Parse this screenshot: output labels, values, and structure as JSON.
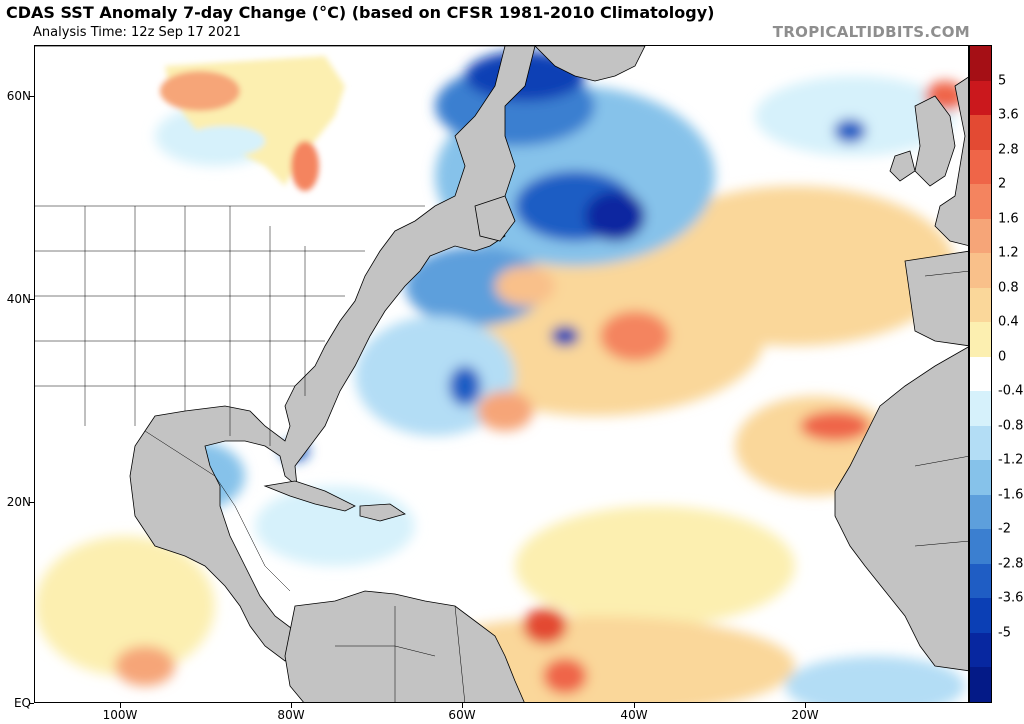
{
  "header": {
    "title": "CDAS SST Anomaly 7-day Change (°C) (based on CFSR 1981-2010 Climatology)",
    "analysis_time": "Analysis Time: 12z Sep 17 2021",
    "credit": "TROPICALTIDBITS.COM"
  },
  "axes": {
    "lat_labels": [
      "60N",
      "40N",
      "20N",
      "EQ"
    ],
    "lon_labels": [
      "100W",
      "80W",
      "60W",
      "40W",
      "20W"
    ]
  },
  "colorbar": {
    "labels": [
      "5",
      "3.6",
      "2.8",
      "2",
      "1.6",
      "1.2",
      "0.8",
      "0.4",
      "0",
      "-0.4",
      "-0.8",
      "-1.2",
      "-1.6",
      "-2",
      "-2.8",
      "-3.6",
      "-5"
    ],
    "colors": [
      "#a50f15",
      "#cb181d",
      "#e34a33",
      "#ef6548",
      "#f4845f",
      "#f6a578",
      "#f9c08a",
      "#fad79a",
      "#fcefb0",
      "#ffffff",
      "#d6f1fb",
      "#b3ddf5",
      "#86c2ea",
      "#5d9fdc",
      "#3b7fd0",
      "#1f5dc4",
      "#0b3fb5",
      "#0727a0",
      "#041a87"
    ]
  },
  "colors": {
    "land": "#c3c3c3",
    "ocean_neutral": "#ffffff",
    "border": "#000000"
  }
}
